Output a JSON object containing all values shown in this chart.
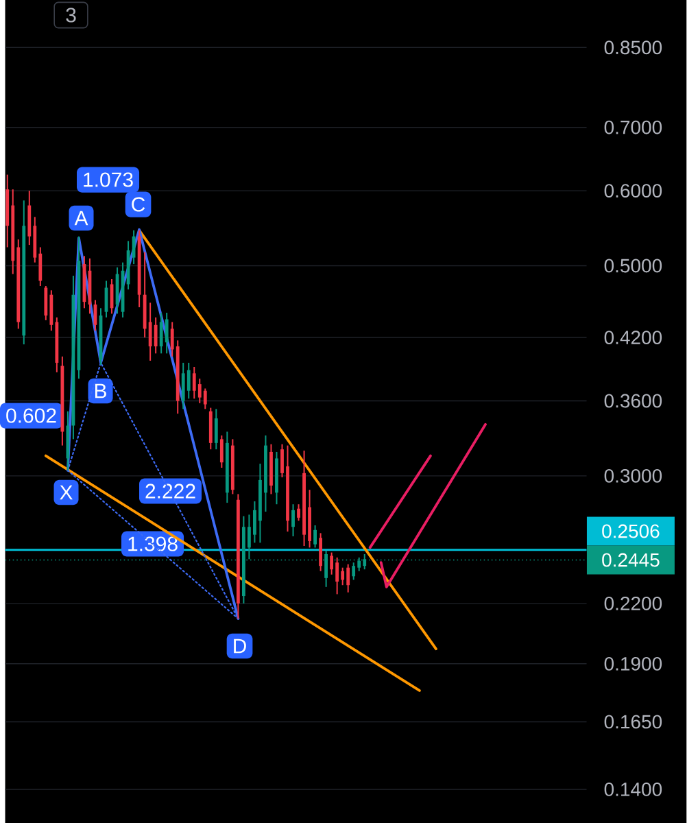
{
  "chart_data": {
    "type": "candlestick",
    "log": true,
    "grid": "y",
    "categories": [
      null,
      null,
      null,
      null,
      null,
      null,
      null,
      null,
      null,
      null,
      null,
      null,
      null,
      null,
      null,
      null,
      null,
      null,
      null,
      null,
      null,
      null,
      null,
      null,
      null,
      null,
      null,
      null,
      null,
      null,
      null,
      null,
      null,
      null,
      null,
      null,
      null,
      null,
      null,
      null,
      null,
      null,
      null,
      null,
      null,
      null,
      null,
      null,
      null,
      null,
      null,
      null,
      null,
      null,
      null,
      null,
      null,
      null,
      null,
      null,
      null,
      null,
      null,
      null,
      null,
      null,
      null,
      null,
      null,
      null,
      null,
      null,
      null,
      null,
      null,
      null,
      null,
      null,
      null,
      null,
      null,
      null,
      null,
      null,
      null,
      null,
      null,
      null,
      null,
      null,
      null,
      null,
      null,
      null,
      null,
      null,
      null,
      null,
      null,
      null,
      null,
      null,
      null,
      null,
      null,
      null
    ],
    "ohlc": [
      [
        0.602,
        0.624,
        0.523,
        0.551
      ],
      [
        0.579,
        0.602,
        0.49,
        0.506
      ],
      [
        0.523,
        0.533,
        0.429,
        0.436
      ],
      [
        0.422,
        0.586,
        0.413,
        0.551
      ],
      [
        0.579,
        0.6,
        0.526,
        0.537
      ],
      [
        0.551,
        0.563,
        0.504,
        0.51
      ],
      [
        0.515,
        0.523,
        0.476,
        0.482
      ],
      [
        0.474,
        0.476,
        0.438,
        0.443
      ],
      [
        0.466,
        0.471,
        0.427,
        0.433
      ],
      [
        0.436,
        0.441,
        0.386,
        0.395
      ],
      [
        0.392,
        0.401,
        0.323,
        0.334
      ],
      [
        0.313,
        0.351,
        0.304,
        0.339
      ],
      [
        0.339,
        0.488,
        0.328,
        0.466
      ],
      [
        0.388,
        0.537,
        0.38,
        0.506
      ],
      [
        0.502,
        0.512,
        0.451,
        0.458
      ],
      [
        0.494,
        0.509,
        0.445,
        0.455
      ],
      [
        0.455,
        0.46,
        0.427,
        0.433
      ],
      [
        0.398,
        0.451,
        0.393,
        0.443
      ],
      [
        0.447,
        0.482,
        0.441,
        0.474
      ],
      [
        0.478,
        0.484,
        0.445,
        0.451
      ],
      [
        0.455,
        0.498,
        0.445,
        0.49
      ],
      [
        0.447,
        0.504,
        0.441,
        0.494
      ],
      [
        0.478,
        0.531,
        0.472,
        0.519
      ],
      [
        0.51,
        0.545,
        0.502,
        0.537
      ],
      [
        0.537,
        0.545,
        0.452,
        0.466
      ],
      [
        0.466,
        0.517,
        0.42,
        0.429
      ],
      [
        0.436,
        0.457,
        0.397,
        0.411
      ],
      [
        0.433,
        0.441,
        0.404,
        0.411
      ],
      [
        0.411,
        0.446,
        0.404,
        0.436
      ],
      [
        0.415,
        0.446,
        0.404,
        0.439
      ],
      [
        0.429,
        0.436,
        0.401,
        0.408
      ],
      [
        0.411,
        0.417,
        0.349,
        0.36
      ],
      [
        0.36,
        0.395,
        0.353,
        0.385
      ],
      [
        0.369,
        0.395,
        0.362,
        0.388
      ],
      [
        0.385,
        0.391,
        0.362,
        0.369
      ],
      [
        0.375,
        0.38,
        0.358,
        0.363
      ],
      [
        0.369,
        0.371,
        0.353,
        0.357
      ],
      [
        0.351,
        0.354,
        0.32,
        0.325
      ],
      [
        0.325,
        0.353,
        0.32,
        0.345
      ],
      [
        0.328,
        0.331,
        0.306,
        0.31
      ],
      [
        0.288,
        0.334,
        0.281,
        0.325
      ],
      [
        0.323,
        0.328,
        0.287,
        0.29
      ],
      [
        0.283,
        0.287,
        0.212,
        0.22
      ],
      [
        0.224,
        0.272,
        0.22,
        0.265
      ],
      [
        0.252,
        0.273,
        0.245,
        0.265
      ],
      [
        0.26,
        0.282,
        0.255,
        0.276
      ],
      [
        0.269,
        0.309,
        0.255,
        0.297
      ],
      [
        0.288,
        0.331,
        0.275,
        0.323
      ],
      [
        0.318,
        0.324,
        0.287,
        0.293
      ],
      [
        0.288,
        0.318,
        0.28,
        0.313
      ],
      [
        0.32,
        0.324,
        0.299,
        0.302
      ],
      [
        0.307,
        0.323,
        0.262,
        0.269
      ],
      [
        0.265,
        0.28,
        0.259,
        0.276
      ],
      [
        0.277,
        0.28,
        0.269,
        0.271
      ],
      [
        0.302,
        0.319,
        0.253,
        0.26
      ],
      [
        0.278,
        0.29,
        0.252,
        0.256
      ],
      [
        0.254,
        0.266,
        0.252,
        0.263
      ],
      [
        0.258,
        0.261,
        0.238,
        0.241
      ],
      [
        0.234,
        0.25,
        0.229,
        0.248
      ],
      [
        0.247,
        0.249,
        0.236,
        0.239
      ],
      [
        0.243,
        0.246,
        0.225,
        0.232
      ],
      [
        0.238,
        0.24,
        0.23,
        0.233
      ],
      [
        0.24,
        0.242,
        0.226,
        0.23
      ],
      [
        0.235,
        0.243,
        0.233,
        0.241
      ],
      [
        0.24,
        0.246,
        0.238,
        0.244
      ],
      [
        0.241,
        0.248,
        0.239,
        0.245
      ],
      null,
      null,
      null,
      null,
      null,
      null,
      null,
      null,
      null,
      null,
      null,
      null,
      null,
      null,
      null,
      null,
      null,
      null,
      null,
      null,
      null,
      null,
      null,
      null,
      null,
      null,
      null,
      null,
      null,
      null,
      null,
      null,
      null,
      null,
      null,
      null,
      null,
      null,
      null,
      null
    ],
    "colors": [
      "#f23645",
      "#f23645",
      "#f23645",
      "#089981",
      "#f23645",
      "#f23645",
      "#f23645",
      "#f23645",
      "#f23645",
      "#f23645",
      "#f23645",
      "#089981",
      "#089981",
      "#089981",
      "#f23645",
      "#f23645",
      "#f23645",
      "#089981",
      "#089981",
      "#f23645",
      "#089981",
      "#089981",
      "#089981",
      "#089981",
      "#f23645",
      "#f23645",
      "#f23645",
      "#f23645",
      "#089981",
      "#089981",
      "#f23645",
      "#f23645",
      "#089981",
      "#089981",
      "#f23645",
      "#f23645",
      "#f23645",
      "#f23645",
      "#089981",
      "#f23645",
      "#089981",
      "#f23645",
      "#f23645",
      "#089981",
      "#089981",
      "#089981",
      "#089981",
      "#089981",
      "#f23645",
      "#089981",
      "#f23645",
      "#f23645",
      "#089981",
      "#f23645",
      "#f23645",
      "#f23645",
      "#089981",
      "#f23645",
      "#089981",
      "#f23645",
      "#f23645",
      "#f23645",
      "#f23645",
      "#089981",
      "#089981",
      "#089981",
      null,
      null,
      null,
      null,
      null,
      null,
      null,
      null,
      null,
      null,
      null,
      null,
      null,
      null,
      null,
      null,
      null,
      null,
      null,
      null,
      null,
      null,
      null,
      null,
      null,
      null,
      null,
      null,
      null,
      null,
      null,
      null,
      null,
      null,
      null,
      null,
      null,
      null,
      null,
      null
    ],
    "series": [
      {
        "type": "line",
        "color": "#ff9800",
        "values": [
          null,
          null,
          null,
          null,
          null,
          null,
          null,
          null,
          null,
          null,
          null,
          null,
          null,
          null,
          null,
          null,
          null,
          null,
          null,
          null,
          null,
          null,
          null,
          null,
          0.545,
          null,
          null,
          null,
          null,
          null,
          null,
          null,
          null,
          null,
          null,
          null,
          null,
          null,
          null,
          null,
          null,
          null,
          null,
          null,
          null,
          null,
          null,
          null,
          null,
          null,
          null,
          null,
          null,
          null,
          null,
          null,
          null,
          null,
          null,
          null,
          null,
          null,
          null,
          null,
          null,
          null,
          null,
          null,
          null,
          null,
          null,
          null,
          null,
          null,
          null,
          null,
          null,
          null,
          0.197,
          null,
          null,
          null,
          null,
          null,
          null,
          null,
          null,
          null,
          null,
          null,
          null,
          null,
          null,
          null,
          null,
          null,
          null,
          null,
          null,
          null,
          null,
          null,
          null,
          null,
          null,
          null
        ]
      },
      {
        "type": "line",
        "color": "#ff9800",
        "values": [
          null,
          null,
          null,
          null,
          null,
          null,
          null,
          0.315,
          null,
          null,
          null,
          null,
          null,
          null,
          null,
          null,
          null,
          null,
          null,
          null,
          null,
          null,
          null,
          null,
          null,
          null,
          null,
          null,
          null,
          null,
          null,
          null,
          null,
          null,
          null,
          null,
          null,
          null,
          null,
          null,
          null,
          null,
          null,
          null,
          null,
          null,
          null,
          null,
          null,
          null,
          null,
          null,
          null,
          null,
          null,
          null,
          null,
          null,
          null,
          null,
          null,
          null,
          null,
          null,
          null,
          null,
          null,
          null,
          null,
          null,
          null,
          null,
          null,
          null,
          null,
          0.178,
          null,
          null,
          null,
          null,
          null,
          null,
          null,
          null,
          null,
          null,
          null,
          null,
          null,
          null,
          null,
          null,
          null,
          null,
          null,
          null,
          null,
          null,
          null,
          null,
          null,
          null,
          null,
          null,
          null,
          null
        ]
      },
      {
        "type": "line",
        "color": "#3d6bf5",
        "values": [
          null,
          null,
          null,
          null,
          null,
          null,
          null,
          null,
          null,
          null,
          null,
          0.304,
          null,
          0.535,
          null,
          null,
          null,
          0.395,
          null,
          null,
          null,
          null,
          null,
          null,
          0.546,
          null,
          null,
          null,
          null,
          null,
          null,
          null,
          null,
          null,
          null,
          null,
          null,
          null,
          null,
          null,
          null,
          null,
          0.212,
          null,
          null,
          null,
          null,
          null,
          null,
          null,
          null,
          null,
          null,
          null,
          null,
          null,
          null,
          null,
          null,
          null,
          null,
          null,
          null,
          null,
          null,
          null,
          null,
          null,
          null,
          null,
          null,
          null,
          null,
          null,
          null,
          null,
          null,
          null,
          null,
          null,
          null,
          null,
          null,
          null,
          null,
          null,
          null,
          null,
          null,
          null,
          null,
          null,
          null,
          null,
          null,
          null,
          null,
          null,
          null,
          null,
          null,
          null,
          null,
          null,
          null,
          null
        ]
      },
      {
        "type": "line",
        "color": "#3d6bf5",
        "line_style": "dotted",
        "values": [
          null,
          null,
          null,
          null,
          null,
          null,
          null,
          null,
          null,
          null,
          null,
          0.304,
          null,
          null,
          null,
          null,
          null,
          0.395,
          null,
          null,
          null,
          null,
          null,
          null,
          null,
          null,
          null,
          null,
          null,
          null,
          null,
          null,
          null,
          null,
          null,
          null,
          null,
          null,
          null,
          null,
          null,
          null,
          0.212,
          null,
          null,
          null,
          null,
          null,
          null,
          null,
          null,
          null,
          null,
          null,
          null,
          null,
          null,
          null,
          null,
          null,
          null,
          null,
          null,
          null,
          null,
          null,
          null,
          null,
          null,
          null,
          null,
          null,
          null,
          null,
          null,
          null,
          null,
          null,
          null,
          null,
          null,
          null,
          null,
          null,
          null,
          null,
          null,
          null,
          null,
          null,
          null,
          null,
          null,
          null,
          null,
          null,
          null,
          null,
          null,
          null,
          null,
          null,
          null,
          null,
          null,
          null
        ]
      },
      {
        "type": "line",
        "color": "#3d6bf5",
        "line_style": "dotted",
        "values": [
          null,
          null,
          null,
          null,
          null,
          null,
          null,
          null,
          null,
          null,
          null,
          0.304,
          null,
          null,
          null,
          null,
          null,
          null,
          null,
          null,
          null,
          null,
          null,
          null,
          null,
          null,
          null,
          null,
          null,
          null,
          null,
          null,
          null,
          null,
          null,
          null,
          null,
          null,
          null,
          null,
          null,
          null,
          0.212,
          null,
          null,
          null,
          null,
          null,
          null,
          null,
          null,
          null,
          null,
          null,
          null,
          null,
          null,
          null,
          null,
          null,
          null,
          null,
          null,
          null,
          null,
          null,
          null,
          null,
          null,
          null,
          null,
          null,
          null,
          null,
          null,
          null,
          null,
          null,
          null,
          null,
          null,
          null,
          null,
          null,
          null,
          null,
          null,
          null,
          null,
          null,
          null,
          null,
          null,
          null,
          null,
          null,
          null,
          null,
          null,
          null,
          null,
          null,
          null,
          null,
          null,
          null
        ]
      },
      {
        "type": "line",
        "color": "#e91e63",
        "values": [
          null,
          null,
          null,
          null,
          null,
          null,
          null,
          null,
          null,
          null,
          null,
          null,
          null,
          null,
          null,
          null,
          null,
          null,
          null,
          null,
          null,
          null,
          null,
          null,
          null,
          null,
          null,
          null,
          null,
          null,
          null,
          null,
          null,
          null,
          null,
          null,
          null,
          null,
          null,
          null,
          null,
          null,
          null,
          null,
          null,
          null,
          null,
          null,
          null,
          null,
          null,
          null,
          null,
          null,
          null,
          null,
          null,
          null,
          null,
          null,
          null,
          null,
          null,
          null,
          null,
          null,
          0.252,
          null,
          null,
          null,
          null,
          null,
          null,
          null,
          null,
          null,
          null,
          0.315,
          null,
          null,
          null,
          null,
          null,
          null,
          null,
          null,
          null,
          null,
          null,
          null,
          null,
          null,
          null,
          null,
          null,
          null,
          null,
          null,
          null,
          null,
          null,
          null,
          null,
          null,
          null,
          null
        ]
      },
      {
        "type": "line",
        "color": "#e91e63",
        "values": [
          null,
          null,
          null,
          null,
          null,
          null,
          null,
          null,
          null,
          null,
          null,
          null,
          null,
          null,
          null,
          null,
          null,
          null,
          null,
          null,
          null,
          null,
          null,
          null,
          null,
          null,
          null,
          null,
          null,
          null,
          null,
          null,
          null,
          null,
          null,
          null,
          null,
          null,
          null,
          null,
          null,
          null,
          null,
          null,
          null,
          null,
          null,
          null,
          null,
          null,
          null,
          null,
          null,
          null,
          null,
          null,
          null,
          null,
          null,
          null,
          null,
          null,
          null,
          null,
          null,
          null,
          null,
          null,
          0.243,
          0.229,
          null,
          null,
          null,
          null,
          null,
          null,
          null,
          null,
          null,
          null,
          null,
          null,
          null,
          null,
          null,
          null,
          null,
          0.34,
          null,
          null,
          null,
          null,
          null,
          null,
          null,
          null,
          null,
          null,
          null,
          null,
          null,
          null,
          null,
          null,
          null,
          null
        ]
      }
    ],
    "ylim": [
      0.129,
      0.954
    ],
    "yticks": [
      {
        "value": 0.85,
        "label": "0.8500"
      },
      {
        "value": 0.7,
        "label": "0.7000"
      },
      {
        "value": 0.6,
        "label": "0.6000"
      },
      {
        "value": 0.5,
        "label": "0.5000"
      },
      {
        "value": 0.42,
        "label": "0.4200"
      },
      {
        "value": 0.36,
        "label": "0.3600"
      },
      {
        "value": 0.3,
        "label": "0.3000"
      },
      {
        "value": 0.22,
        "label": "0.2200"
      },
      {
        "value": 0.19,
        "label": "0.1900"
      },
      {
        "value": 0.165,
        "label": "0.1650"
      },
      {
        "value": 0.14,
        "label": "0.1400"
      }
    ],
    "ref_lines": [
      {
        "axis": "y",
        "value": 0.2506,
        "label": "0.2506",
        "color": "#00bcd4"
      },
      {
        "axis": "y",
        "value": 0.2445,
        "label": "0.2445",
        "color": "#089981",
        "line_style": "dotted"
      }
    ],
    "annotations": [
      "3",
      "0.602",
      "1.073",
      "2.222",
      "1.398",
      "X",
      "A",
      "B",
      "C",
      "D"
    ]
  }
}
